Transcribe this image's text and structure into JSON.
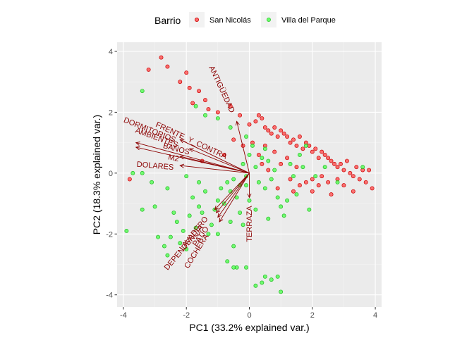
{
  "chart_data": {
    "type": "scatter",
    "subtype": "pca-biplot",
    "title": "",
    "xlabel": "PC1 (33.2% explained var.)",
    "ylabel": "PC2 (18.3% explained var.)",
    "xlim": [
      -4.2,
      4.2
    ],
    "ylim": [
      -4.4,
      4.3
    ],
    "xticks": [
      -4,
      -2,
      0,
      2,
      4
    ],
    "yticks": [
      -4,
      -2,
      0,
      2,
      4
    ],
    "grid": true,
    "legend": {
      "title": "Barrio",
      "position": "top",
      "entries": [
        "San Nicolás",
        "Villa del Parque"
      ]
    },
    "colors": {
      "panel": "#ebebeb",
      "grid": "#ffffff",
      "arrow": "#8b0000",
      "San Nicolás": "#ff3b3b",
      "Villa del Parque": "#3bff3b"
    },
    "series": [
      {
        "name": "San Nicolás",
        "points": [
          [
            -3.2,
            3.4
          ],
          [
            -2.8,
            3.8
          ],
          [
            -2.6,
            3.5
          ],
          [
            -2.2,
            3.0
          ],
          [
            -2.0,
            3.3
          ],
          [
            -1.9,
            2.8
          ],
          [
            -1.6,
            2.7
          ],
          [
            -1.4,
            2.4
          ],
          [
            -1.3,
            2.1
          ],
          [
            -1.8,
            2.3
          ],
          [
            -1.0,
            2.0
          ],
          [
            -0.6,
            2.2
          ],
          [
            -0.3,
            1.9
          ],
          [
            0.0,
            1.6
          ],
          [
            0.2,
            1.7
          ],
          [
            0.3,
            1.9
          ],
          [
            0.4,
            1.8
          ],
          [
            0.5,
            1.5
          ],
          [
            0.6,
            1.4
          ],
          [
            0.7,
            1.3
          ],
          [
            0.8,
            1.5
          ],
          [
            0.9,
            1.2
          ],
          [
            1.0,
            1.4
          ],
          [
            1.1,
            1.3
          ],
          [
            1.2,
            1.2
          ],
          [
            1.3,
            1.0
          ],
          [
            1.4,
            1.1
          ],
          [
            1.5,
            0.9
          ],
          [
            1.6,
            1.2
          ],
          [
            1.7,
            0.8
          ],
          [
            1.8,
            1.0
          ],
          [
            1.9,
            0.9
          ],
          [
            2.0,
            0.7
          ],
          [
            2.1,
            0.8
          ],
          [
            2.2,
            0.5
          ],
          [
            2.3,
            0.7
          ],
          [
            2.4,
            0.6
          ],
          [
            2.5,
            0.5
          ],
          [
            2.6,
            0.4
          ],
          [
            2.7,
            0.3
          ],
          [
            2.8,
            0.2
          ],
          [
            2.9,
            0.3
          ],
          [
            3.0,
            0.1
          ],
          [
            3.1,
            0.4
          ],
          [
            3.2,
            0.0
          ],
          [
            3.3,
            -0.1
          ],
          [
            3.4,
            0.2
          ],
          [
            3.5,
            -0.2
          ],
          [
            3.6,
            0.1
          ],
          [
            3.7,
            -0.3
          ],
          [
            3.8,
            0.1
          ],
          [
            3.9,
            -0.5
          ],
          [
            3.0,
            -0.4
          ],
          [
            2.8,
            -0.2
          ],
          [
            2.5,
            -0.3
          ],
          [
            2.3,
            -0.1
          ],
          [
            2.0,
            -0.2
          ],
          [
            1.8,
            -0.3
          ],
          [
            1.5,
            0.2
          ],
          [
            1.2,
            0.5
          ],
          [
            1.0,
            0.3
          ],
          [
            0.8,
            0.7
          ],
          [
            0.5,
            0.9
          ],
          [
            0.3,
            0.6
          ],
          [
            0.1,
            1.0
          ],
          [
            -0.2,
            0.9
          ],
          [
            -0.5,
            1.1
          ],
          [
            -0.8,
            0.6
          ],
          [
            -3.8,
            -0.2
          ],
          [
            -1.5,
            0.4
          ],
          [
            1.3,
            -0.2
          ],
          [
            1.6,
            -0.4
          ],
          [
            2.2,
            -0.4
          ],
          [
            2.6,
            -0.7
          ],
          [
            3.3,
            -0.6
          ],
          [
            2.0,
            -0.6
          ],
          [
            1.4,
            -0.6
          ],
          [
            0.9,
            -0.5
          ],
          [
            0.6,
            0.1
          ],
          [
            0.4,
            0.3
          ]
        ]
      },
      {
        "name": "Villa del Parque",
        "points": [
          [
            -3.9,
            -1.9
          ],
          [
            -3.7,
            0.0
          ],
          [
            -3.4,
            -1.2
          ],
          [
            -3.0,
            -1.1
          ],
          [
            -2.9,
            -2.1
          ],
          [
            -2.7,
            -2.4
          ],
          [
            -2.6,
            -2.7
          ],
          [
            -2.5,
            -2.1
          ],
          [
            -2.3,
            -1.6
          ],
          [
            -2.2,
            -2.3
          ],
          [
            -2.1,
            -1.9
          ],
          [
            -2.0,
            -2.5
          ],
          [
            -1.9,
            -1.4
          ],
          [
            -1.8,
            -0.8
          ],
          [
            -1.7,
            -1.8
          ],
          [
            -1.6,
            -1.1
          ],
          [
            -1.5,
            -1.3
          ],
          [
            -1.4,
            -0.6
          ],
          [
            -1.3,
            -2.0
          ],
          [
            -1.2,
            -1.7
          ],
          [
            -1.1,
            -1.2
          ],
          [
            -1.0,
            -0.9
          ],
          [
            -0.9,
            -0.5
          ],
          [
            -0.8,
            -1.0
          ],
          [
            -0.7,
            -0.3
          ],
          [
            -0.6,
            -0.6
          ],
          [
            -0.5,
            -0.2
          ],
          [
            -0.4,
            -0.8
          ],
          [
            -0.3,
            -0.4
          ],
          [
            -0.2,
            0.3
          ],
          [
            -0.1,
            -0.1
          ],
          [
            0.0,
            0.6
          ],
          [
            0.1,
            0.9
          ],
          [
            0.2,
            0.2
          ],
          [
            0.3,
            -0.3
          ],
          [
            0.4,
            0.5
          ],
          [
            0.5,
            -0.5
          ],
          [
            0.6,
            0.4
          ],
          [
            0.7,
            -0.2
          ],
          [
            0.8,
            0.1
          ],
          [
            0.9,
            -0.8
          ],
          [
            1.0,
            -1.1
          ],
          [
            1.1,
            -1.4
          ],
          [
            1.2,
            -0.9
          ],
          [
            1.3,
            0.3
          ],
          [
            1.4,
            -0.1
          ],
          [
            1.5,
            -0.7
          ],
          [
            1.6,
            0.6
          ],
          [
            1.7,
            0.2
          ],
          [
            1.9,
            -1.2
          ],
          [
            2.1,
            -0.1
          ],
          [
            2.4,
            0.2
          ],
          [
            2.8,
            -0.3
          ],
          [
            3.6,
            0.2
          ],
          [
            1.8,
            0.9
          ],
          [
            -0.5,
            -2.4
          ],
          [
            -0.7,
            -2.9
          ],
          [
            -0.4,
            -3.1
          ],
          [
            -0.5,
            -3.1
          ],
          [
            -0.1,
            -3.1
          ],
          [
            0.2,
            -3.7
          ],
          [
            0.5,
            -3.4
          ],
          [
            0.7,
            -3.5
          ],
          [
            1.0,
            -3.9
          ],
          [
            0.4,
            -3.6
          ],
          [
            0.9,
            -3.4
          ],
          [
            -0.3,
            -1.3
          ],
          [
            -0.2,
            -1.7
          ],
          [
            -0.6,
            -1.6
          ],
          [
            -1.0,
            1.8
          ],
          [
            -1.4,
            1.9
          ],
          [
            -1.7,
            2.2
          ],
          [
            -0.6,
            1.5
          ],
          [
            -0.1,
            1.2
          ],
          [
            0.5,
            0.8
          ],
          [
            -3.1,
            -0.3
          ],
          [
            -2.6,
            -0.5
          ],
          [
            -2.0,
            -0.1
          ],
          [
            -1.6,
            -0.3
          ],
          [
            -3.4,
            0.0
          ],
          [
            -2.4,
            -1.3
          ],
          [
            0.2,
            -1.2
          ],
          [
            0.6,
            -1.5
          ],
          [
            -3.4,
            2.7
          ],
          [
            -1.0,
            -2.0
          ],
          [
            -0.1,
            -0.4
          ],
          [
            0.0,
            -0.9
          ]
        ]
      }
    ],
    "vectors": [
      {
        "name": "ANTIGÜEDAD",
        "end": [
          -0.4,
          1.7
        ]
      },
      {
        "name": "TERRAZA",
        "end": [
          0.0,
          -0.8
        ]
      },
      {
        "name": "DORMITORIOS",
        "end": [
          -3.6,
          1.0
        ]
      },
      {
        "name": "AMBIENTES",
        "end": [
          -3.6,
          0.85
        ]
      },
      {
        "name": "FRENTE_Y_CONTRA",
        "end": [
          -2.2,
          1.1
        ]
      },
      {
        "name": "BAÑOS",
        "end": [
          -1.9,
          0.8
        ]
      },
      {
        "name": "M2",
        "end": [
          -2.2,
          0.55
        ]
      },
      {
        "name": "DOLARES",
        "end": [
          -2.2,
          0.25
        ]
      },
      {
        "name": "LAVADERO",
        "end": [
          -1.1,
          -1.2
        ]
      },
      {
        "name": "DEPENDENCIA",
        "end": [
          -1.05,
          -1.3
        ]
      },
      {
        "name": "PATIO",
        "end": [
          -1.0,
          -1.45
        ]
      },
      {
        "name": "COCHERA",
        "end": [
          -0.95,
          -1.6
        ]
      }
    ]
  }
}
